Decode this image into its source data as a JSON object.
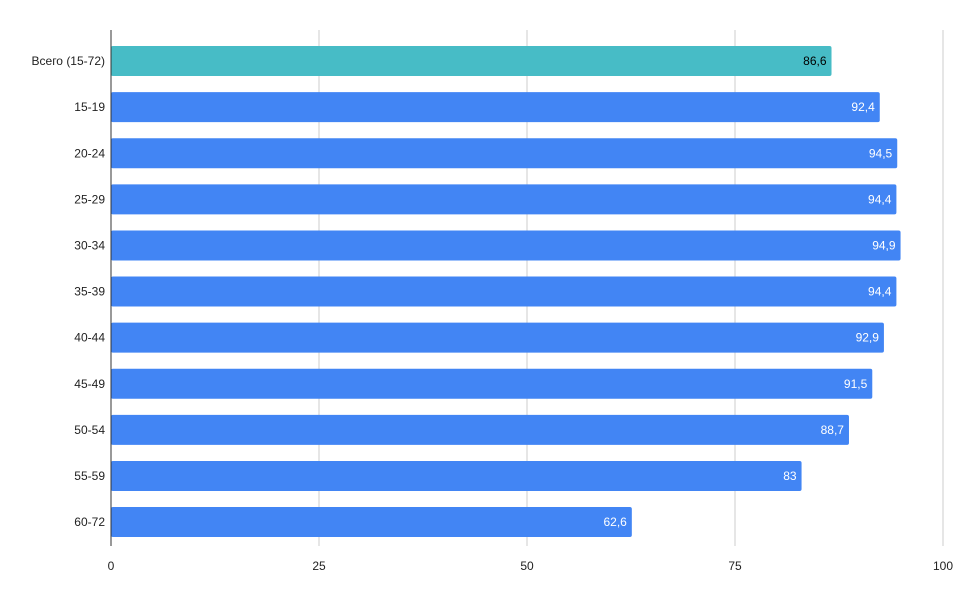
{
  "chart_data": {
    "type": "bar",
    "orientation": "horizontal",
    "title": "",
    "xlabel": "",
    "ylabel": "",
    "xlim": [
      0,
      100
    ],
    "x_ticks": [
      "0",
      "25",
      "50",
      "75",
      "100"
    ],
    "x_tick_values": [
      0,
      25,
      50,
      75,
      100
    ],
    "grid": true,
    "legend": "none",
    "categories": [
      "Всего (15-72)",
      "15-19",
      "20-24",
      "25-29",
      "30-34",
      "35-39",
      "40-44",
      "45-49",
      "50-54",
      "55-59",
      "60-72"
    ],
    "values": [
      86.6,
      92.4,
      94.5,
      94.4,
      94.9,
      94.4,
      92.9,
      91.5,
      88.7,
      83,
      62.6
    ],
    "value_labels": [
      "86,6",
      "92,4",
      "94,5",
      "94,4",
      "94,9",
      "94,4",
      "92,9",
      "91,5",
      "88,7",
      "83",
      "62,6"
    ],
    "colors": {
      "highlight": "#47bcc6",
      "default": "#4285f4",
      "highlight_label": "#000000",
      "default_label": "#ffffff",
      "grid": "#cccccc",
      "axis": "#333333"
    },
    "highlight_index": 0
  }
}
